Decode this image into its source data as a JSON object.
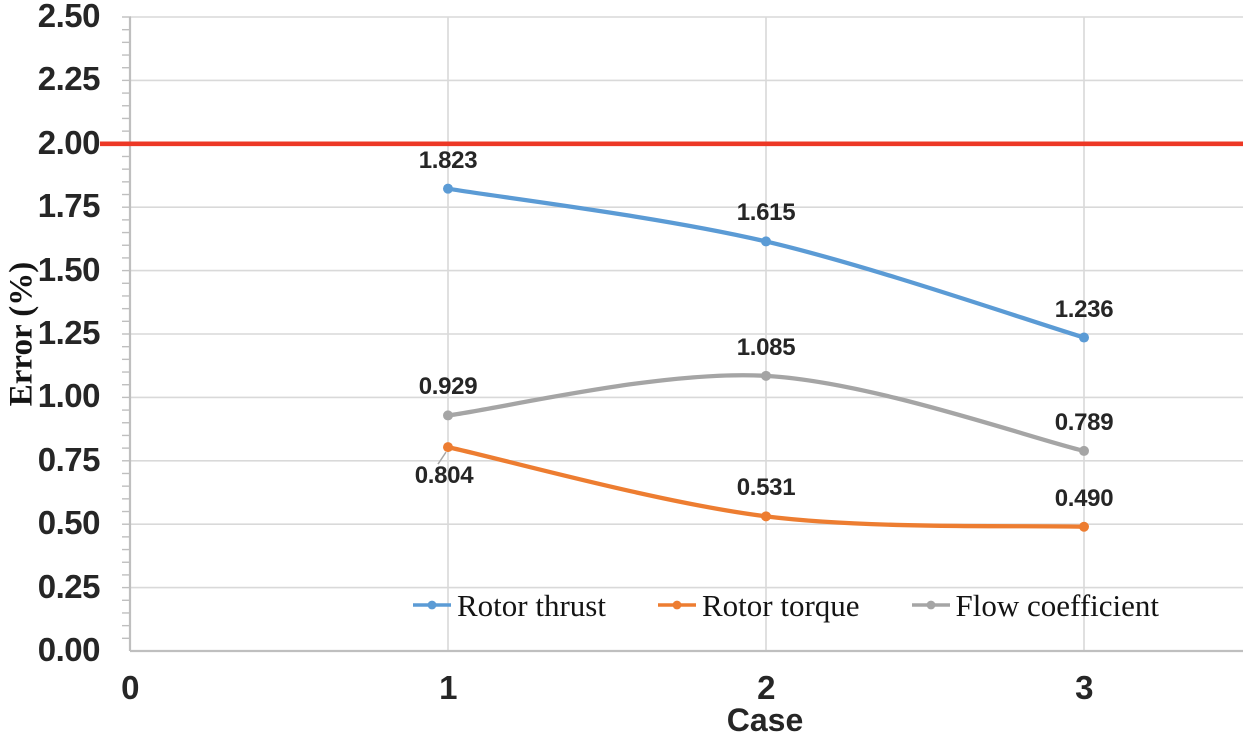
{
  "chart_data": {
    "type": "line",
    "title": "",
    "xlabel": "Case",
    "ylabel": "Error (%)",
    "x": [
      1,
      2,
      3
    ],
    "xticks": [
      "0",
      "1",
      "2",
      "3"
    ],
    "xtick_values": [
      0,
      1,
      2,
      3
    ],
    "xlim": [
      0,
      3.5
    ],
    "ylim": [
      0,
      2.5
    ],
    "ytick_step": 0.25,
    "y_minor_step": 0.05,
    "yticks": [
      "0.00",
      "0.25",
      "0.50",
      "0.75",
      "1.00",
      "1.25",
      "1.50",
      "1.75",
      "2.00",
      "2.25",
      "2.50"
    ],
    "grid": true,
    "legend_position": "bottom-inside",
    "line_style": "smooth",
    "series": [
      {
        "name": "Rotor thrust",
        "color": "#5B9BD5",
        "values": [
          1.823,
          1.615,
          1.236
        ],
        "point_labels": [
          "1.823",
          "1.615",
          "1.236"
        ],
        "label_pos": [
          "above",
          "above",
          "above"
        ]
      },
      {
        "name": "Rotor torque",
        "color": "#ED7D31",
        "values": [
          0.804,
          0.531,
          0.49
        ],
        "point_labels": [
          "0.804",
          "0.531",
          "0.490"
        ],
        "label_pos": [
          "below",
          "above",
          "above"
        ]
      },
      {
        "name": "Flow coefficient",
        "color": "#A5A5A5",
        "values": [
          0.929,
          1.085,
          0.789
        ],
        "point_labels": [
          "0.929",
          "1.085",
          "0.789"
        ],
        "label_pos": [
          "above",
          "above",
          "above"
        ]
      }
    ],
    "reference_line": {
      "value": 2.0,
      "color": "#ED3825"
    },
    "colors": {
      "grid": "#D9D9D9",
      "axis": "#BFBFBF",
      "text": "#262626"
    }
  }
}
